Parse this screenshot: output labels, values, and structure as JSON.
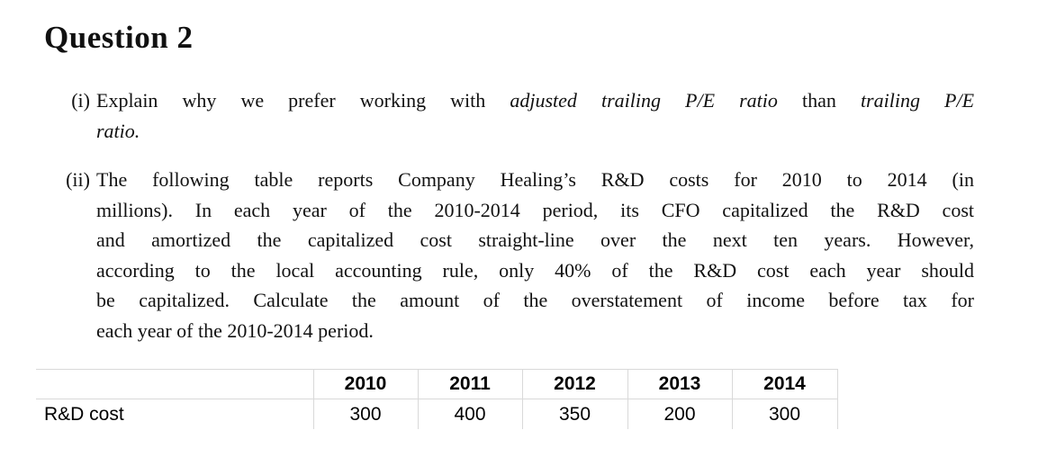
{
  "document": {
    "title": "Question 2",
    "background": "#ffffff",
    "text_color": "#111111"
  },
  "questions": [
    {
      "label": "(i)",
      "lines": [
        {
          "justify": true,
          "segments": [
            {
              "text": "Explain why we prefer working with ",
              "italic": false
            },
            {
              "text": "adjusted trailing P/E ratio",
              "italic": true
            },
            {
              "text": " than ",
              "italic": false
            },
            {
              "text": "trailing P/E",
              "italic": true
            }
          ]
        },
        {
          "justify": false,
          "segments": [
            {
              "text": "ratio.",
              "italic": true
            }
          ]
        }
      ]
    },
    {
      "label": "(ii)",
      "lines": [
        {
          "justify": true,
          "segments": [
            {
              "text": "The following table reports Company Healing’s R&D costs for 2010 to 2014 (in",
              "italic": false
            }
          ]
        },
        {
          "justify": true,
          "segments": [
            {
              "text": "millions). In each year of the 2010-2014 period, its CFO capitalized the R&D cost",
              "italic": false
            }
          ]
        },
        {
          "justify": true,
          "segments": [
            {
              "text": "and amortized the capitalized cost straight-line over the next ten years. However,",
              "italic": false
            }
          ]
        },
        {
          "justify": true,
          "segments": [
            {
              "text": "according to the local accounting rule, only 40% of the R&D cost each year should",
              "italic": false
            }
          ]
        },
        {
          "justify": true,
          "segments": [
            {
              "text": "be capitalized. Calculate the amount of the overstatement of income before tax for",
              "italic": false
            }
          ]
        },
        {
          "justify": false,
          "segments": [
            {
              "text": "each year of the 2010-2014 period.",
              "italic": false
            }
          ]
        }
      ]
    }
  ],
  "table": {
    "row_label": "R&D cost",
    "year_headers": [
      "2010",
      "2011",
      "2012",
      "2013",
      "2014"
    ],
    "values": [
      "300",
      "400",
      "350",
      "200",
      "300"
    ],
    "border_color": "#d9d9d9"
  }
}
